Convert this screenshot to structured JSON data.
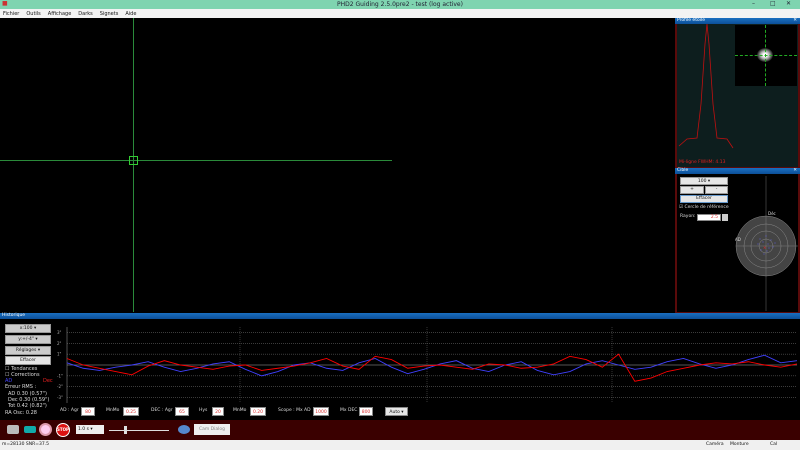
{
  "window": {
    "title": "PHD2 Guiding 2.5.0pre2 - test (log active)"
  },
  "menu": [
    "Fichier",
    "Outils",
    "Affichage",
    "Darks",
    "Signets",
    "Aide"
  ],
  "profile": {
    "title": "Profile étoile",
    "fwhm_label": "Mi-ligne FWHM: 4.13"
  },
  "cible": {
    "title": "Cible",
    "zoom_value": "100",
    "plus": "+",
    "minus": "-",
    "clear": "Effacer",
    "ref_circle": "Cercle de référence",
    "ref_checked": true,
    "radius_label": "Rayon:",
    "radius_value": "2.5",
    "axis_ra": "AD",
    "axis_dec": "Déc",
    "ring_labels": [
      "2\"",
      "1.5\"",
      "1\"",
      "0.5\""
    ]
  },
  "history": {
    "title": "Historique",
    "scale": "x:100",
    "yscale": "y:+/-4\"",
    "settings": "Réglages",
    "clear": "Effacer",
    "trends": "Tendances",
    "corrections": "Corrections",
    "ra_label": "AD",
    "dec_label": "Dec",
    "rms_title": "Erreur RMS :",
    "rms_ra": "AD 0.30 (0.57\")",
    "rms_dec": "Dec 0.30 (0.59\")",
    "rms_tot": "Tot 0.42 (0.82\")",
    "ra_osc": "RA Osc: 0.28",
    "colors": {
      "ra": "#4040ff",
      "dec": "#ff0000"
    }
  },
  "chart_data": {
    "type": "line",
    "ylim": [
      -3.5,
      3.5
    ],
    "ytick_labels": [
      "3\"",
      "2\"",
      "1\"",
      "-1\"",
      "-2\"",
      "-3\""
    ],
    "yticks": [
      3,
      2,
      1,
      -1,
      -2,
      -3
    ],
    "series": [
      {
        "name": "AD",
        "values": [
          0.2,
          -0.3,
          -0.5,
          -0.2,
          0.0,
          0.3,
          -0.2,
          -0.6,
          -0.3,
          0.1,
          0.3,
          -0.4,
          -1.0,
          -0.6,
          0.0,
          0.2,
          -0.3,
          -0.5,
          0.2,
          0.6,
          -0.2,
          -0.8,
          -0.4,
          0.1,
          0.4,
          -0.3,
          -0.6,
          0.0,
          0.3,
          -0.5,
          -0.9,
          -0.6,
          0.1,
          0.4,
          0.0,
          -0.4,
          -0.2,
          0.3,
          0.6,
          0.1,
          -0.3,
          0.0,
          0.5,
          0.9,
          0.2,
          0.4
        ]
      },
      {
        "name": "Dec",
        "values": [
          0.6,
          0.0,
          -0.3,
          -0.6,
          -0.9,
          -0.1,
          0.4,
          0.0,
          -0.2,
          -0.4,
          -0.1,
          0.0,
          -0.5,
          -0.3,
          -0.1,
          0.2,
          0.6,
          -0.1,
          -0.4,
          0.8,
          0.5,
          -0.3,
          -0.1,
          0.0,
          -0.2,
          -0.4,
          0.1,
          0.0,
          -0.3,
          -0.2,
          0.1,
          0.8,
          0.5,
          -0.2,
          1.0,
          -1.5,
          -1.2,
          -0.6,
          -0.3,
          0.0,
          0.2,
          0.1,
          0.3,
          0.0,
          -0.2,
          0.1
        ]
      }
    ]
  },
  "controls": {
    "ra_agr_label": "AD : Agr",
    "ra_agr": "80",
    "ra_mnmo_label": "MnMo",
    "ra_mnmo": "0.25",
    "dec_agr_label": "DEC : Agr",
    "dec_agr": "65",
    "hys_label": "Hys",
    "hys": "20",
    "dec_mnmo_label": "MnMo",
    "dec_mnmo": "0.20",
    "scope_ra_label": "Scope : Mx AD",
    "scope_ra": "1000",
    "mx_dec_label": "Mx DEC",
    "mx_dec": "800",
    "mode": "Auto"
  },
  "toolbar": {
    "exposure": "1.0 s",
    "cam_dialog": "Cam Dialog",
    "stop": "STOP"
  },
  "status": {
    "left": "m=28130 SNR=37.5",
    "camera": "Caméra",
    "mount": "Monture",
    "cal": "Cal"
  }
}
